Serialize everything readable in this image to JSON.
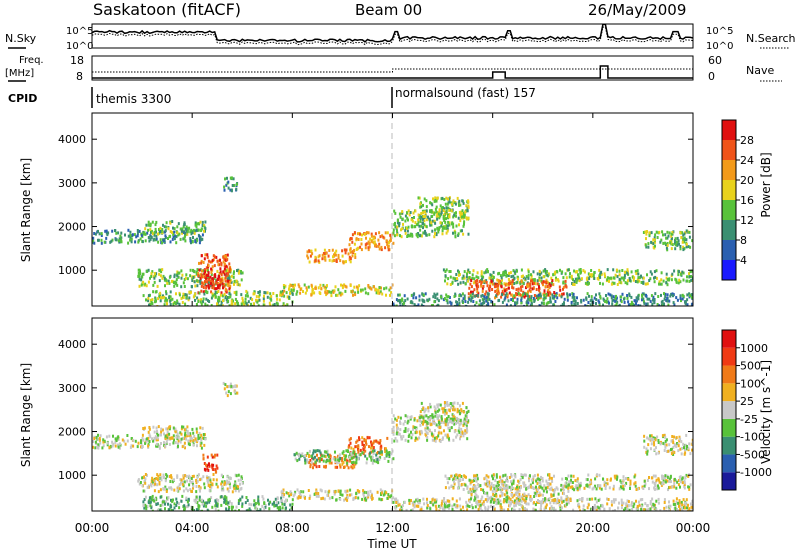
{
  "header": {
    "title": "Saskatoon (fitACF)",
    "beam": "Beam 00",
    "date": "26/May/2009"
  },
  "noise_panel": {
    "left_label": "N.Sky",
    "right_label": "N.Search",
    "ticks": [
      "10^5",
      "10^0"
    ]
  },
  "freq_panel": {
    "left_label_1": "Freq.",
    "left_label_2": "[MHz]",
    "left_ticks": [
      "18",
      "8"
    ],
    "right_label": "Nave",
    "right_ticks": [
      "60",
      "0"
    ]
  },
  "cpid_panel": {
    "label": "CPID",
    "modes": [
      {
        "name": "themis 3300",
        "start_hour": 0
      },
      {
        "name": "normalsound (fast) 157",
        "start_hour": 12
      }
    ]
  },
  "power_panel": {
    "ylabel": "Slant Range [km]",
    "yticks": [
      "1000",
      "2000",
      "3000",
      "4000"
    ],
    "colorbar_label": "Power [dB]",
    "colorbar_levels": [
      "4",
      "8",
      "12",
      "16",
      "20",
      "24",
      "28"
    ],
    "colorbar_colors": [
      "#1a1aff",
      "#2a5fb0",
      "#3a8f72",
      "#58c23a",
      "#e8d21c",
      "#f39a1a",
      "#f0541a",
      "#e01010"
    ]
  },
  "velocity_panel": {
    "ylabel": "Slant Range [km]",
    "yticks": [
      "1000",
      "2000",
      "3000",
      "4000"
    ],
    "colorbar_label": "Velocity [m s^-1]",
    "colorbar_levels": [
      "1000",
      "500",
      "100",
      "25",
      "-25",
      "-100",
      "-500",
      "-1000"
    ],
    "colorbar_colors": [
      "#1a1a9a",
      "#2a5fb0",
      "#3a8f72",
      "#58c23a",
      "#c8c8c8",
      "#f0b020",
      "#f07a18",
      "#f03a14",
      "#e01010"
    ]
  },
  "x_axis": {
    "label": "Time UT",
    "ticks": [
      "00:00",
      "04:00",
      "08:00",
      "12:00",
      "16:00",
      "20:00",
      "00:00"
    ]
  },
  "chart_data": {
    "type": "heatmap",
    "title": "Saskatoon (fitACF)",
    "xlabel": "Time UT",
    "ylabel": "Slant Range [km]",
    "xlim": [
      0,
      24
    ],
    "ylim": [
      180,
      4600
    ],
    "grid": false,
    "power_blobs": [
      {
        "t0": 0.0,
        "t1": 4.5,
        "r0": 1650,
        "r1": 1950,
        "level": 2
      },
      {
        "t0": 2.0,
        "t1": 4.5,
        "r0": 1850,
        "r1": 2150,
        "level": 3
      },
      {
        "t0": 1.8,
        "t1": 6.0,
        "r0": 650,
        "r1": 1050,
        "level": 3
      },
      {
        "t0": 4.2,
        "t1": 5.5,
        "r0": 500,
        "r1": 1400,
        "level": 6
      },
      {
        "t0": 4.5,
        "t1": 5.2,
        "r0": 600,
        "r1": 1000,
        "level": 7
      },
      {
        "t0": 2.0,
        "t1": 8.0,
        "r0": 200,
        "r1": 550,
        "level": 3
      },
      {
        "t0": 7.5,
        "t1": 12.0,
        "r0": 450,
        "r1": 700,
        "level": 4
      },
      {
        "t0": 8.5,
        "t1": 10.5,
        "r0": 1200,
        "r1": 1500,
        "level": 5
      },
      {
        "t0": 10.2,
        "t1": 12.0,
        "r0": 1500,
        "r1": 1900,
        "level": 5
      },
      {
        "t0": 12.0,
        "t1": 15.0,
        "r0": 1800,
        "r1": 2400,
        "level": 3
      },
      {
        "t0": 13.0,
        "t1": 15.0,
        "r0": 2200,
        "r1": 2700,
        "level": 3
      },
      {
        "t0": 14.0,
        "t1": 24.0,
        "r0": 700,
        "r1": 1050,
        "level": 3
      },
      {
        "t0": 15.0,
        "t1": 19.0,
        "r0": 400,
        "r1": 800,
        "level": 6
      },
      {
        "t0": 12.0,
        "t1": 24.0,
        "r0": 200,
        "r1": 500,
        "level": 2
      },
      {
        "t0": 5.2,
        "t1": 5.8,
        "r0": 2850,
        "r1": 3150,
        "level": 2
      },
      {
        "t0": 22.0,
        "t1": 24.0,
        "r0": 1500,
        "r1": 1950,
        "level": 3
      }
    ],
    "velocity_blobs": [
      {
        "t0": 0.0,
        "t1": 4.5,
        "r0": 1650,
        "r1": 1950,
        "level": 4
      },
      {
        "t0": 2.0,
        "t1": 4.5,
        "r0": 1850,
        "r1": 2150,
        "level": 4
      },
      {
        "t0": 1.8,
        "t1": 6.0,
        "r0": 650,
        "r1": 1050,
        "level": 4
      },
      {
        "t0": 4.4,
        "t1": 5.0,
        "r0": 1100,
        "r1": 1500,
        "level": 7
      },
      {
        "t0": 8.5,
        "t1": 10.5,
        "r0": 1200,
        "r1": 1500,
        "level": 6
      },
      {
        "t0": 10.2,
        "t1": 11.8,
        "r0": 1500,
        "r1": 1900,
        "level": 6
      },
      {
        "t0": 8.0,
        "t1": 12.0,
        "r0": 1300,
        "r1": 1600,
        "level": 3
      },
      {
        "t0": 2.0,
        "t1": 8.0,
        "r0": 200,
        "r1": 550,
        "level": 3
      },
      {
        "t0": 7.5,
        "t1": 12.0,
        "r0": 450,
        "r1": 700,
        "level": 4
      },
      {
        "t0": 12.0,
        "t1": 15.0,
        "r0": 1800,
        "r1": 2400,
        "level": 4
      },
      {
        "t0": 13.0,
        "t1": 15.0,
        "r0": 2200,
        "r1": 2700,
        "level": 4
      },
      {
        "t0": 14.0,
        "t1": 24.0,
        "r0": 700,
        "r1": 1050,
        "level": 4
      },
      {
        "t0": 15.0,
        "t1": 19.0,
        "r0": 400,
        "r1": 800,
        "level": 4
      },
      {
        "t0": 12.0,
        "t1": 24.0,
        "r0": 200,
        "r1": 500,
        "level": 4
      },
      {
        "t0": 5.2,
        "t1": 5.8,
        "r0": 2850,
        "r1": 3150,
        "level": 4
      },
      {
        "t0": 22.0,
        "t1": 24.0,
        "r0": 1500,
        "r1": 1950,
        "level": 4
      }
    ]
  }
}
